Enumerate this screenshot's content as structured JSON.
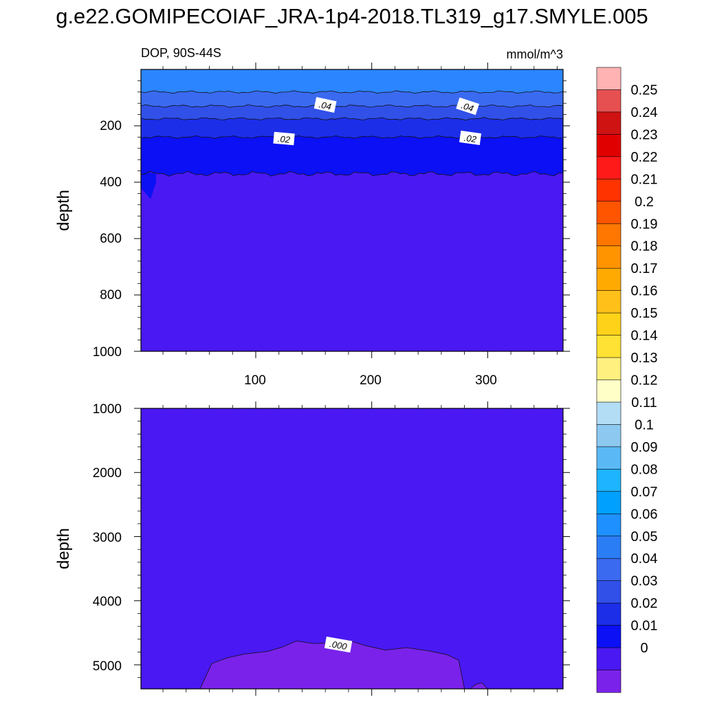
{
  "title": "g.e22.GOMIPECOIAF_JRA-1p4-2018.TL319_g17.SMYLE.005",
  "chart_data": [
    {
      "type": "heatmap",
      "panel": "upper",
      "variable_label": "DOP, 90S-44S",
      "units_label": "mmol/m^3",
      "ylabel": "depth",
      "xlabel": "",
      "x_ticks": [
        "100",
        "200",
        "300"
      ],
      "y_ticks": [
        "200",
        "400",
        "600",
        "800",
        "1000"
      ],
      "xlim": [
        1,
        365
      ],
      "ylim": [
        0,
        1000
      ],
      "y_reversed": true,
      "contour_labels": [
        {
          "text": ".04",
          "x": 160,
          "y": 130
        },
        {
          "text": ".04",
          "x": 282,
          "y": 130
        },
        {
          "text": ".02",
          "x": 124,
          "y": 245
        },
        {
          "text": ".02",
          "x": 286,
          "y": 240
        }
      ],
      "bands": [
        {
          "value_range": "0.05-0.06",
          "color": "#2b85ff",
          "depth_from": 0,
          "depth_to": 80
        },
        {
          "value_range": "0.04-0.05",
          "color": "#3a6af0",
          "depth_from": 80,
          "depth_to": 130
        },
        {
          "value_range": "0.03-0.04",
          "color": "#3050e8",
          "depth_from": 130,
          "depth_to": 175
        },
        {
          "value_range": "0.02-0.03",
          "color": "#1c2ee8",
          "depth_from": 175,
          "depth_to": 240
        },
        {
          "value_range": "0.01-0.02",
          "color": "#0b10f5",
          "depth_from": 240,
          "depth_to": 370
        },
        {
          "value_range": "0-0.01",
          "color": "#4a18f2",
          "depth_from": 370,
          "depth_to": 1000
        }
      ]
    },
    {
      "type": "heatmap",
      "panel": "lower",
      "ylabel": "depth",
      "xlabel": "",
      "x_ticks": [],
      "y_ticks": [
        "1000",
        "2000",
        "3000",
        "4000",
        "5000"
      ],
      "xlim": [
        1,
        365
      ],
      "ylim": [
        1000,
        5375
      ],
      "y_reversed": true,
      "contour_labels": [
        {
          "text": ".000",
          "x": 170,
          "y": 4700
        }
      ],
      "bands": [
        {
          "value_range": "0-0.01",
          "color": "#4a18f2",
          "depth_from": 1000,
          "depth_to": 5375
        },
        {
          "value_range": "<0",
          "color": "#7a22ea",
          "depth_from": 4600,
          "depth_to": 5375
        }
      ]
    }
  ],
  "colorbar": {
    "labels": [
      "0.25",
      "0.24",
      "0.23",
      "0.22",
      "0.21",
      "0.2",
      "0.19",
      "0.18",
      "0.17",
      "0.16",
      "0.15",
      "0.14",
      "0.13",
      "0.12",
      "0.11",
      "0.1",
      "0.09",
      "0.08",
      "0.07",
      "0.06",
      "0.05",
      "0.04",
      "0.03",
      "0.02",
      "0.01",
      "0"
    ],
    "colors": [
      "#ffb3b3",
      "#e65050",
      "#cf1212",
      "#e00000",
      "#ff1a1a",
      "#ff3300",
      "#ff5500",
      "#ff7700",
      "#ff9300",
      "#ffaa00",
      "#ffc01a",
      "#ffd21a",
      "#ffe233",
      "#fff080",
      "#ffffc8",
      "#b3dcf5",
      "#8cc8f0",
      "#5ab9f5",
      "#1eb4ff",
      "#00a0ff",
      "#1e90ff",
      "#2b7df5",
      "#3a6af0",
      "#3050e8",
      "#1c2ee8",
      "#0b10f5",
      "#4a18f2",
      "#7a22ea"
    ]
  }
}
